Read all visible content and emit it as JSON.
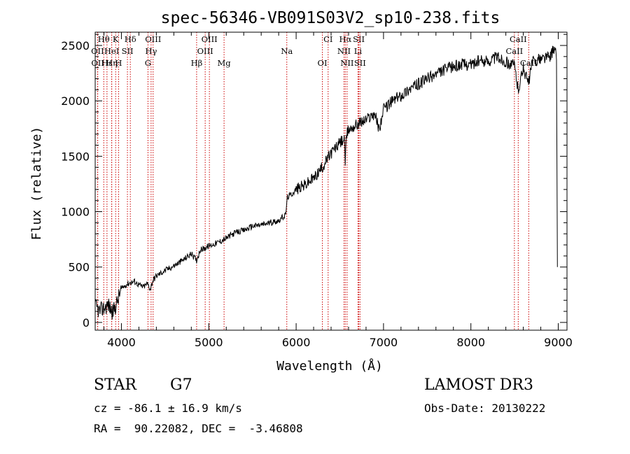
{
  "chart_data": {
    "type": "line",
    "title": "spec-56346-VB091S03V2_sp10-238.fits",
    "xlabel": "Wavelength (Å)",
    "ylabel": "Flux (relative)",
    "xlim": [
      3700,
      9100
    ],
    "ylim": [
      -70,
      2620
    ],
    "xticks": [
      4000,
      5000,
      6000,
      7000,
      8000,
      9000
    ],
    "xtick_labels": [
      "4000",
      "5000",
      "6000",
      "7000",
      "8000",
      "9000"
    ],
    "yticks": [
      0,
      500,
      1000,
      1500,
      2000,
      2500
    ],
    "ytick_labels": [
      "0",
      "500",
      "1000",
      "1500",
      "2000",
      "2500"
    ],
    "grid": false,
    "series": [
      {
        "name": "spectrum",
        "color": "#000000",
        "x": [
          3700,
          3750,
          3800,
          3850,
          3900,
          3950,
          3980,
          4000,
          4050,
          4100,
          4150,
          4200,
          4250,
          4300,
          4330,
          4360,
          4400,
          4500,
          4600,
          4700,
          4800,
          4860,
          4900,
          5000,
          5100,
          5200,
          5300,
          5400,
          5500,
          5600,
          5700,
          5800,
          5880,
          5890,
          5900,
          5950,
          6000,
          6100,
          6200,
          6300,
          6400,
          6500,
          6550,
          6562,
          6580,
          6600,
          6700,
          6800,
          6900,
          6950,
          7000,
          7100,
          7200,
          7300,
          7400,
          7500,
          7600,
          7700,
          7800,
          7900,
          8000,
          8100,
          8200,
          8300,
          8400,
          8500,
          8540,
          8600,
          8660,
          8700,
          8800,
          8900,
          8950,
          8980,
          8990
        ],
        "y": [
          150,
          100,
          130,
          160,
          90,
          180,
          260,
          300,
          340,
          360,
          370,
          340,
          320,
          350,
          300,
          380,
          420,
          470,
          510,
          560,
          620,
          560,
          650,
          690,
          720,
          760,
          810,
          830,
          870,
          880,
          900,
          920,
          970,
          1060,
          1130,
          1160,
          1200,
          1240,
          1300,
          1400,
          1530,
          1620,
          1660,
          1450,
          1700,
          1740,
          1790,
          1830,
          1890,
          1740,
          1920,
          2000,
          2050,
          2110,
          2150,
          2200,
          2240,
          2280,
          2310,
          2330,
          2330,
          2360,
          2360,
          2400,
          2350,
          2320,
          2100,
          2300,
          2150,
          2350,
          2380,
          2400,
          2460,
          2420,
          500
        ]
      }
    ],
    "lines": [
      {
        "label": "Hθ",
        "x": 3798,
        "row": 0
      },
      {
        "label": "K",
        "x": 3934,
        "row": 0
      },
      {
        "label": "Hδ",
        "x": 4102,
        "row": 0
      },
      {
        "label": "OIII",
        "x": 4363,
        "row": 0
      },
      {
        "label": "OIII",
        "x": 5007,
        "row": 0
      },
      {
        "label": "CI",
        "x": 6366,
        "row": 0
      },
      {
        "label": "Hα",
        "x": 6563,
        "row": 0
      },
      {
        "label": "SII",
        "x": 6717,
        "row": 0
      },
      {
        "label": "CaII",
        "x": 8542,
        "row": 0
      },
      {
        "label": "OII",
        "x": 3727,
        "row": 1
      },
      {
        "label": "HeI",
        "x": 3889,
        "row": 1
      },
      {
        "label": "SII",
        "x": 4069,
        "row": 1
      },
      {
        "label": "Hγ",
        "x": 4340,
        "row": 1
      },
      {
        "label": "OIII",
        "x": 4959,
        "row": 1
      },
      {
        "label": "Na",
        "x": 5893,
        "row": 1
      },
      {
        "label": "NII",
        "x": 6548,
        "row": 1
      },
      {
        "label": "Li",
        "x": 6708,
        "row": 1
      },
      {
        "label": "CaII",
        "x": 8498,
        "row": 1
      },
      {
        "label": "OII",
        "x": 3729,
        "row": 2
      },
      {
        "label": "Hε",
        "x": 3835,
        "row": 2
      },
      {
        "label": "Hη",
        "x": 3889,
        "row": 2
      },
      {
        "label": "H",
        "x": 3968,
        "row": 2
      },
      {
        "label": "G",
        "x": 4304,
        "row": 2
      },
      {
        "label": "Hβ",
        "x": 4861,
        "row": 2
      },
      {
        "label": "Mg",
        "x": 5175,
        "row": 2
      },
      {
        "label": "OI",
        "x": 6300,
        "row": 2
      },
      {
        "label": "NII",
        "x": 6583,
        "row": 2
      },
      {
        "label": "SII",
        "x": 6731,
        "row": 2
      },
      {
        "label": "CaII",
        "x": 8662,
        "row": 2
      }
    ],
    "line_color": "#cc0000"
  },
  "info": {
    "class_label": "STAR",
    "subclass": "G7",
    "survey": "LAMOST DR3",
    "cz": "cz = -86.1 ± 16.9 km/s",
    "obs_date": "Obs-Date: 20130222",
    "radec": "RA =  90.22082, DEC =  -3.46808"
  }
}
